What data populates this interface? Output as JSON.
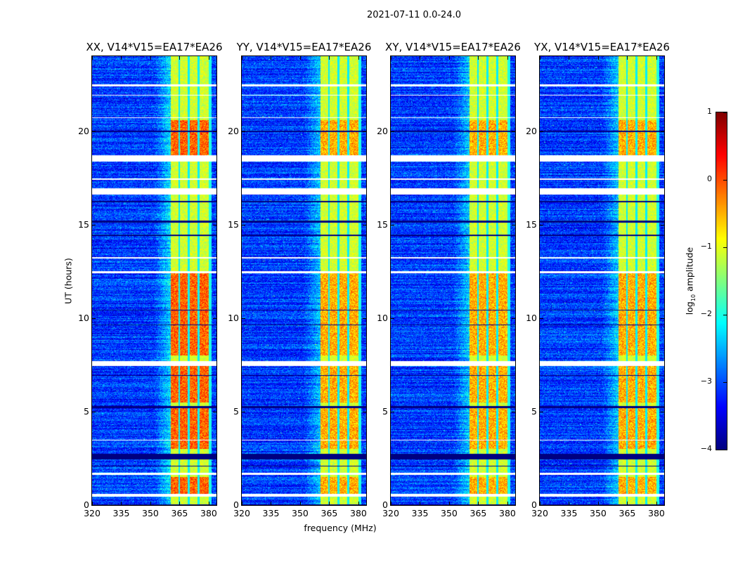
{
  "chart_data": {
    "type": "heatmap",
    "title": "2021-07-11 0.0-24.0",
    "xlabel": "frequency (MHz)",
    "ylabel": "UT (hours)",
    "xlim": [
      320,
      384
    ],
    "ylim": [
      0,
      24
    ],
    "xticks": [
      320,
      335,
      350,
      365,
      380
    ],
    "yticks": [
      0,
      5,
      10,
      15,
      20
    ],
    "panels": [
      {
        "title": "XX, V14*V15=EA17*EA26",
        "gain": 1.0
      },
      {
        "title": "YY, V14*V15=EA17*EA26",
        "gain": 0.85
      },
      {
        "title": "XY, V14*V15=EA17*EA26",
        "gain": 0.9
      },
      {
        "title": "YX, V14*V15=EA17*EA26",
        "gain": 0.9
      }
    ],
    "colorbar": {
      "label_prefix": "log",
      "label_sub": "10",
      "label_suffix": " amplitude",
      "colormap": "jet",
      "range": [
        -4,
        1
      ],
      "ticks": [
        "1",
        "0",
        "−1",
        "−2",
        "−3",
        "−4"
      ],
      "tick_values": [
        1,
        0,
        -1,
        -2,
        -3,
        -4
      ]
    },
    "background_level": -3.1,
    "band_mhz": [
      360.5,
      380
    ],
    "band_level": -1.1,
    "band_channel_edges_mhz": [
      364.8,
      369.8,
      374.8
    ],
    "active_intervals_ut": [
      [
        0.6,
        1.5
      ],
      [
        3.0,
        5.3
      ],
      [
        5.5,
        7.5
      ],
      [
        8.0,
        12.4
      ],
      [
        18.7,
        20.6
      ]
    ],
    "active_level": -0.1,
    "flagged_white_ut": [
      [
        0.45,
        0.6
      ],
      [
        1.6,
        1.72
      ],
      [
        3.45,
        3.5
      ],
      [
        7.45,
        7.7
      ],
      [
        12.38,
        12.5
      ],
      [
        13.2,
        13.25
      ],
      [
        16.6,
        16.95
      ],
      [
        17.4,
        17.45
      ],
      [
        18.35,
        18.7
      ],
      [
        20.7,
        20.75
      ],
      [
        21.9,
        21.95
      ],
      [
        22.4,
        22.5
      ]
    ],
    "flagged_dark_ut": [
      [
        0.0,
        0.05
      ],
      [
        1.0,
        1.03
      ],
      [
        2.05,
        2.12
      ],
      [
        2.45,
        2.75
      ],
      [
        5.2,
        5.3
      ],
      [
        6.9,
        6.95
      ],
      [
        9.6,
        9.65
      ],
      [
        10.4,
        10.45
      ],
      [
        14.4,
        14.45
      ],
      [
        15.1,
        15.2
      ],
      [
        16.2,
        16.25
      ],
      [
        19.95,
        20.0
      ]
    ]
  }
}
